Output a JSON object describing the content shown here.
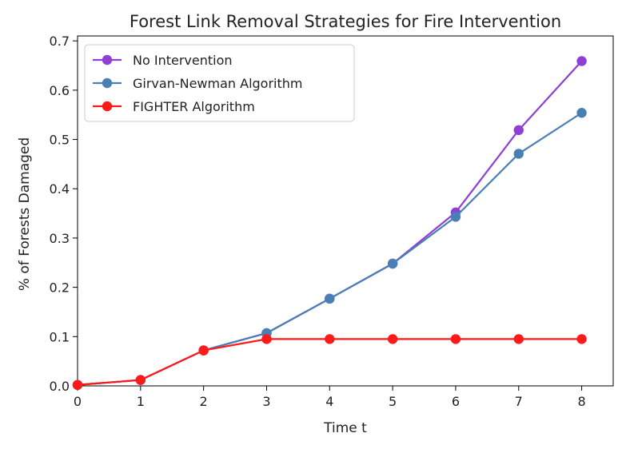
{
  "chart_data": {
    "type": "line",
    "title": "Forest Link Removal Strategies for Fire Intervention",
    "xlabel": "Time t",
    "ylabel": "% of Forests Damaged",
    "xlim": [
      0,
      8.5
    ],
    "ylim": [
      0,
      0.71
    ],
    "xticks": [
      "0",
      "1",
      "2",
      "3",
      "4",
      "5",
      "6",
      "7",
      "8"
    ],
    "yticks": [
      "0.0",
      "0.1",
      "0.2",
      "0.3",
      "0.4",
      "0.5",
      "0.6",
      "0.7"
    ],
    "grid": false,
    "legend_position": "upper-left",
    "x": [
      0,
      1,
      2,
      3,
      4,
      5,
      6,
      7,
      8
    ],
    "series": [
      {
        "name": "No Intervention",
        "color": "#8e3fd6",
        "values": [
          0.002,
          0.012,
          0.072,
          0.107,
          0.177,
          0.248,
          0.352,
          0.519,
          0.659
        ]
      },
      {
        "name": "Girvan-Newman Algorithm",
        "color": "#4a7fb5",
        "values": [
          0.002,
          0.012,
          0.072,
          0.107,
          0.177,
          0.248,
          0.343,
          0.471,
          0.554
        ]
      },
      {
        "name": "FIGHTER Algorithm",
        "color": "#ff1a1a",
        "values": [
          0.002,
          0.012,
          0.072,
          0.095,
          0.095,
          0.095,
          0.095,
          0.095,
          0.095
        ]
      }
    ]
  }
}
